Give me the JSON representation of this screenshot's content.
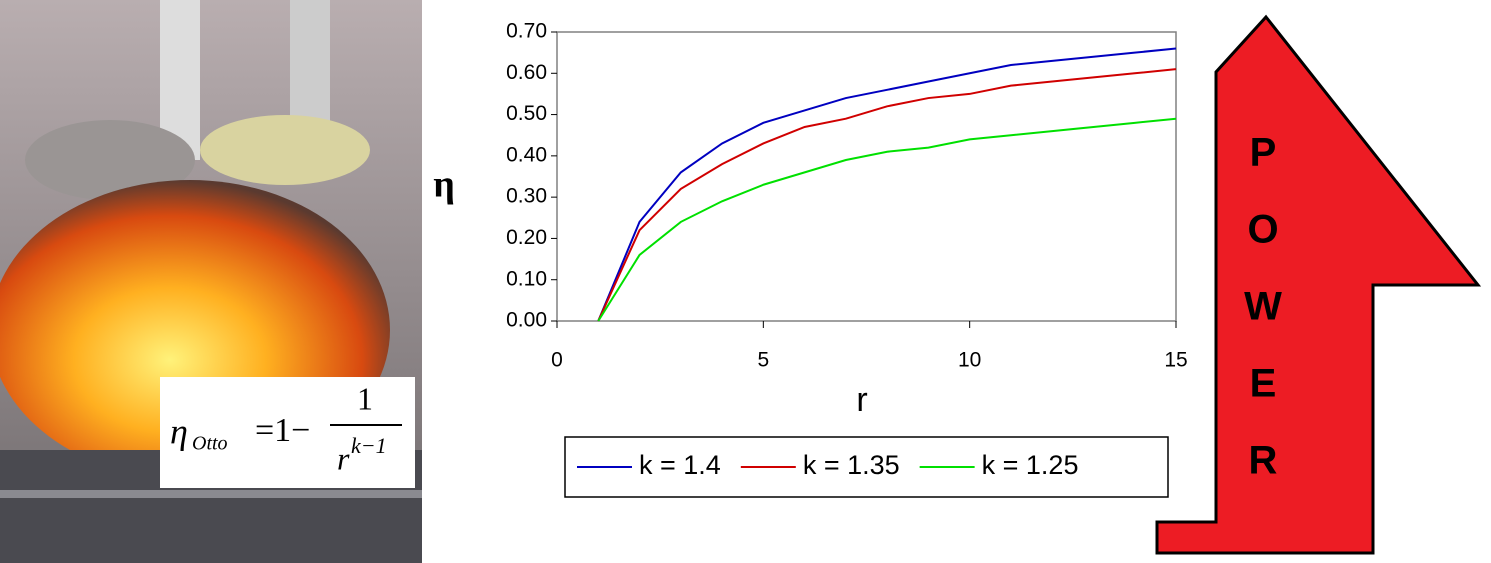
{
  "chart_data": {
    "type": "line",
    "x_label": "r",
    "y_label": "η",
    "x": [
      1,
      2,
      3,
      4,
      5,
      6,
      7,
      8,
      9,
      10,
      11,
      12,
      13,
      14,
      15
    ],
    "series": [
      {
        "name": "k = 1.4",
        "color": "#0000c0",
        "values": [
          0,
          0.24,
          0.36,
          0.43,
          0.48,
          0.51,
          0.54,
          0.56,
          0.58,
          0.6,
          0.62,
          0.63,
          0.64,
          0.65,
          0.66
        ]
      },
      {
        "name": "k = 1.35",
        "color": "#d00000",
        "values": [
          0,
          0.22,
          0.32,
          0.38,
          0.43,
          0.47,
          0.49,
          0.52,
          0.54,
          0.55,
          0.57,
          0.58,
          0.59,
          0.6,
          0.61
        ]
      },
      {
        "name": "k = 1.25",
        "color": "#00e000",
        "values": [
          0,
          0.16,
          0.24,
          0.29,
          0.33,
          0.36,
          0.39,
          0.41,
          0.42,
          0.44,
          0.45,
          0.46,
          0.47,
          0.48,
          0.49
        ]
      }
    ],
    "xlim": [
      0,
      15
    ],
    "xticks": [
      0,
      5,
      10,
      15
    ],
    "ylim": [
      0,
      0.7
    ],
    "yticks": [
      {
        "value": 0,
        "label": "0.00"
      },
      {
        "value": 0.1,
        "label": "0.10"
      },
      {
        "value": 0.2,
        "label": "0.20"
      },
      {
        "value": 0.3,
        "label": "0.30"
      },
      {
        "value": 0.4,
        "label": "0.40"
      },
      {
        "value": 0.5,
        "label": "0.50"
      },
      {
        "value": 0.6,
        "label": "0.60"
      },
      {
        "value": 0.7,
        "label": "0.70"
      }
    ]
  },
  "formula": {
    "lhs": "η",
    "lhs_sub": "Otto",
    "mid": "=1−",
    "numerator": "1",
    "denominator": "r",
    "exponent": "k−1"
  },
  "power_arrow": {
    "letters": [
      "P",
      "O",
      "W",
      "E",
      "R"
    ]
  }
}
